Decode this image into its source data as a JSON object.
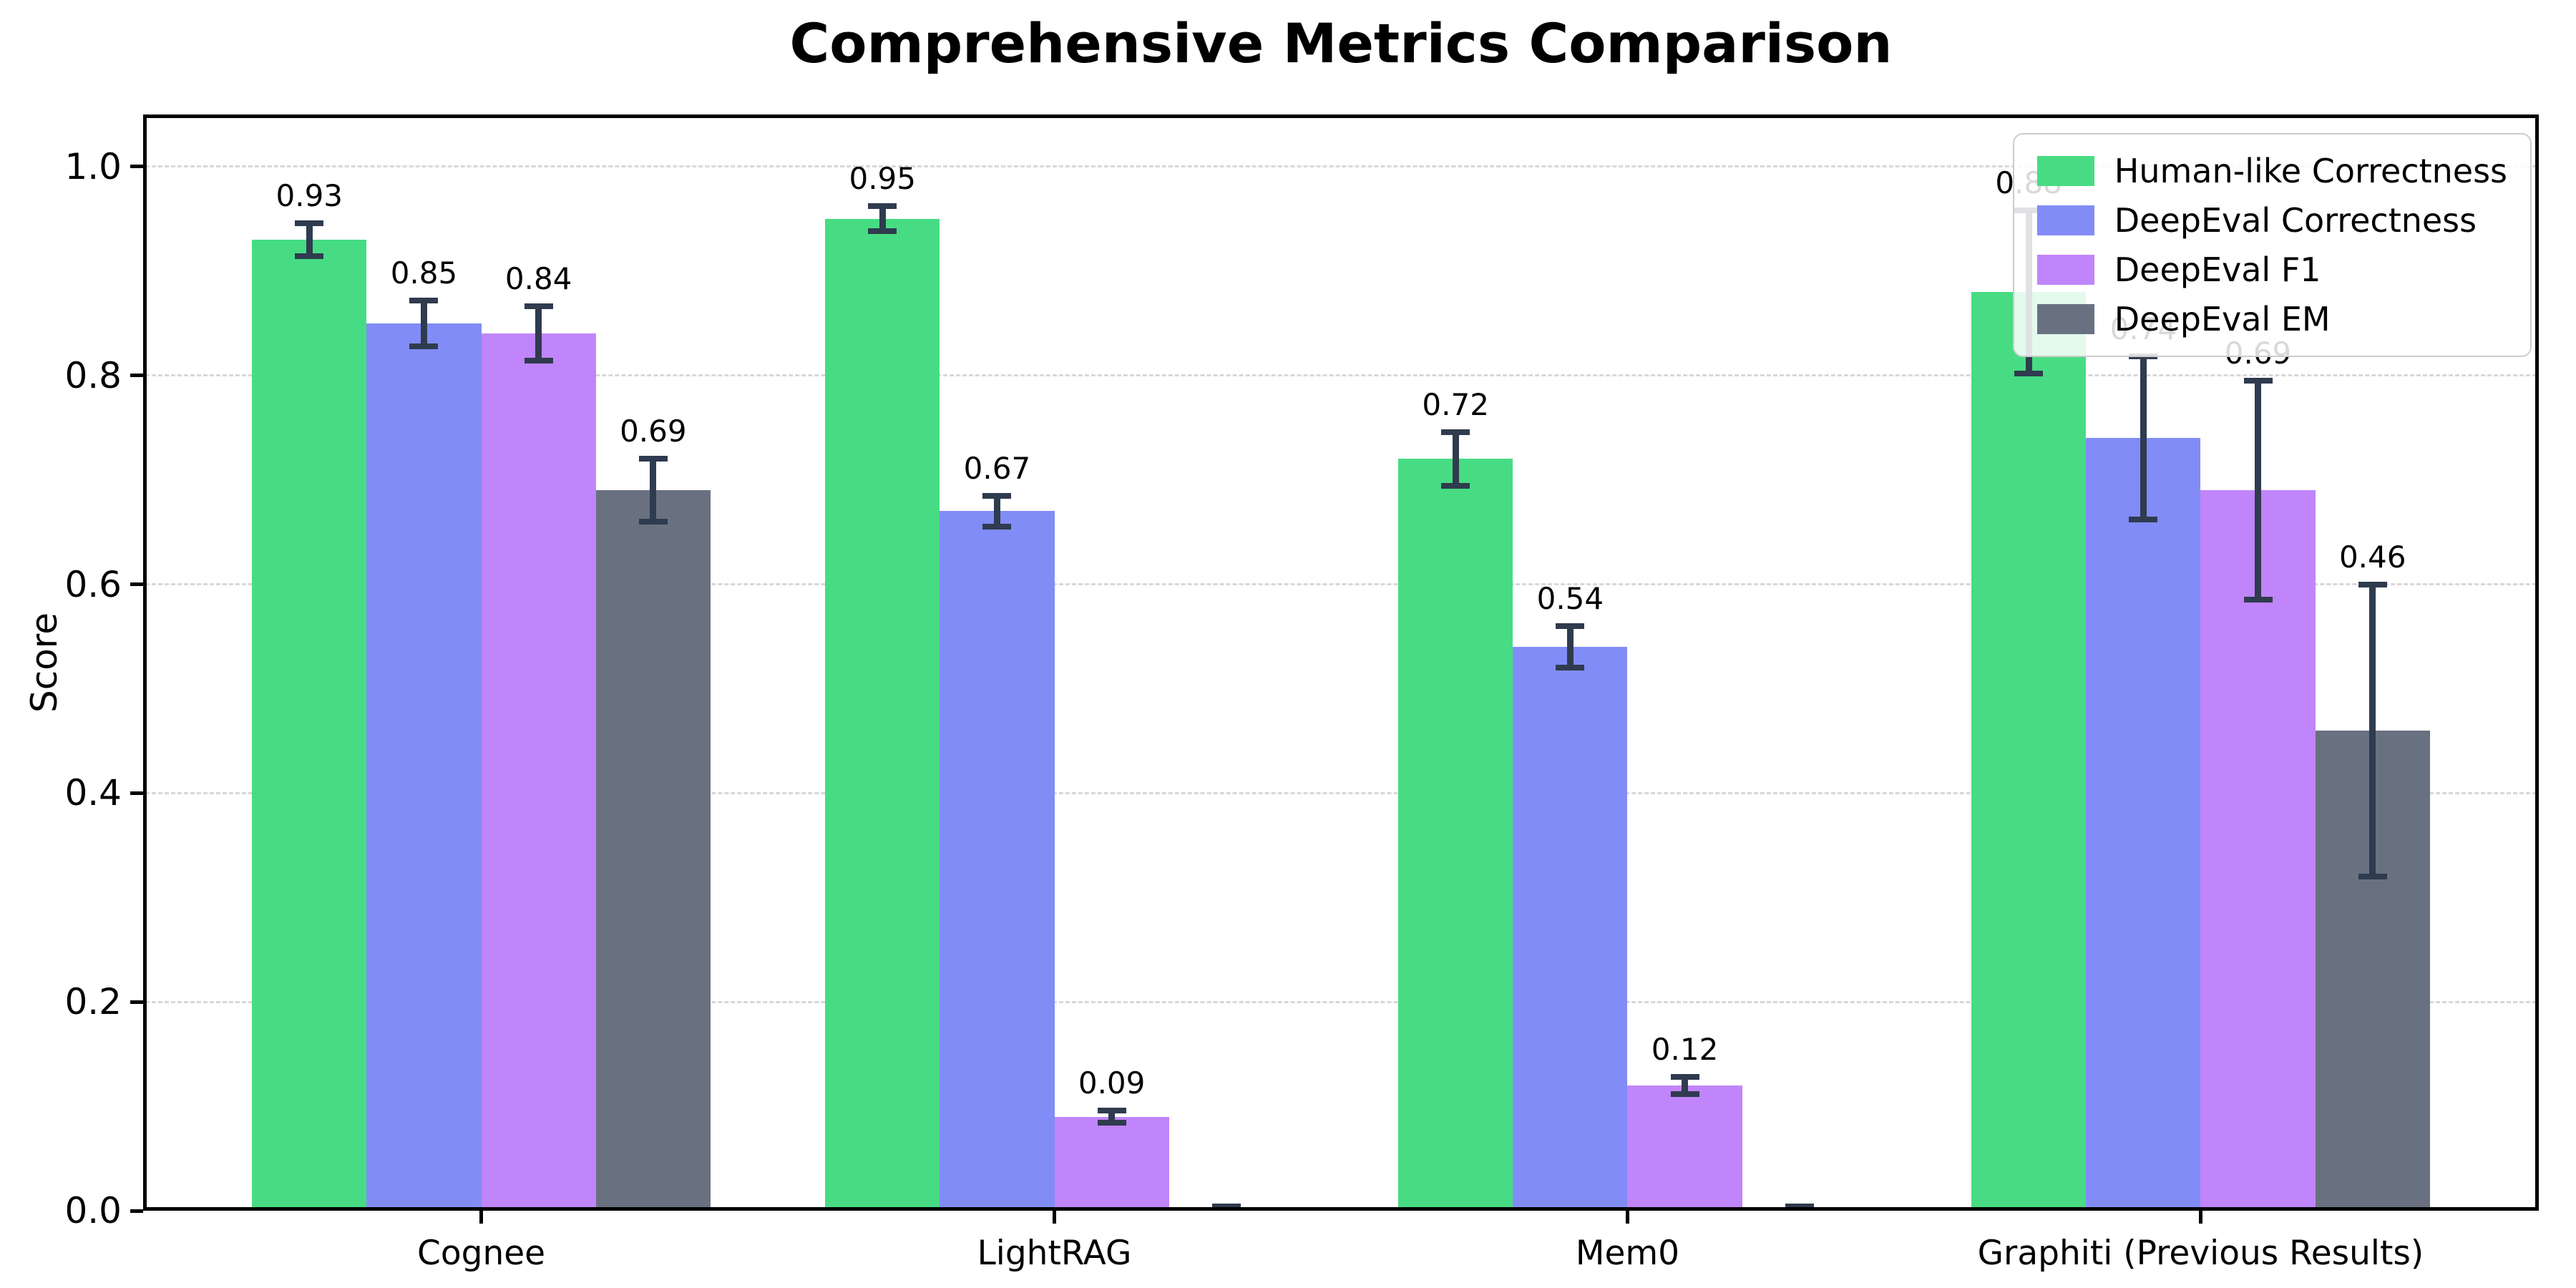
{
  "title": "Comprehensive Metrics Comparison",
  "chart_data": {
    "type": "bar",
    "title": "Comprehensive Metrics Comparison",
    "xlabel": "",
    "ylabel": "Score",
    "ylim": [
      0,
      1.05
    ],
    "ytick_labels": [
      "0.0",
      "0.2",
      "0.4",
      "0.6",
      "0.8",
      "1.0"
    ],
    "grid": "horizontal-dashed",
    "legend_position": "upper-right",
    "categories": [
      "Cognee",
      "LightRAG",
      "Mem0",
      "Graphiti (Previous Results)"
    ],
    "series": [
      {
        "name": "Human-like Correctness",
        "color": "#47dc83",
        "values": [
          0.93,
          0.95,
          0.72,
          0.88
        ],
        "errors": [
          0.016,
          0.012,
          0.026,
          0.078
        ],
        "value_labels": [
          "0.93",
          "0.95",
          "0.72",
          "0.88"
        ]
      },
      {
        "name": "DeepEval Correctness",
        "color": "#828cf7",
        "values": [
          0.85,
          0.67,
          0.54,
          0.74
        ],
        "errors": [
          0.022,
          0.015,
          0.02,
          0.078
        ],
        "value_labels": [
          "0.85",
          "0.67",
          "0.54",
          "0.74"
        ]
      },
      {
        "name": "DeepEval F1",
        "color": "#c085fa",
        "values": [
          0.84,
          0.09,
          0.12,
          0.69
        ],
        "errors": [
          0.026,
          0.006,
          0.008,
          0.105
        ],
        "value_labels": [
          "0.84",
          "0.09",
          "0.12",
          "0.69"
        ]
      },
      {
        "name": "DeepEval EM",
        "color": "#697180",
        "values": [
          0.69,
          0.0,
          0.0,
          0.46
        ],
        "errors": [
          0.03,
          0.004,
          0.004,
          0.14
        ],
        "value_labels": [
          "0.69",
          "",
          "",
          "0.46"
        ]
      }
    ],
    "error_bar_color": "#2f3b4e",
    "grid_color": "#d8d8d8",
    "axis_color": "#000000"
  }
}
